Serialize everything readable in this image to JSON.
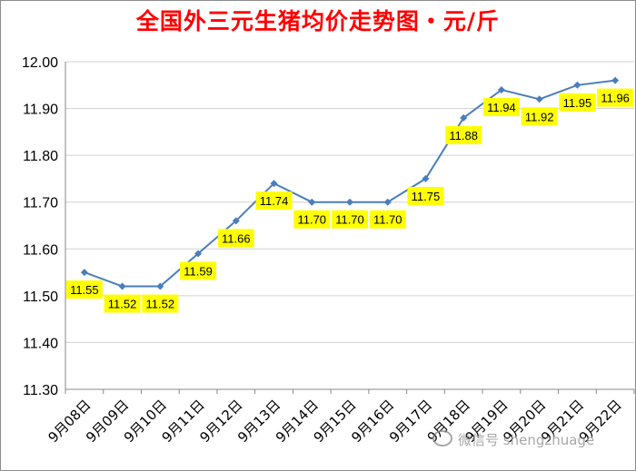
{
  "colors": {
    "title": "#ff0000",
    "line": "#4a7ebb",
    "label_bg": "#ffff00",
    "grid": "#d0d0d0",
    "axis_text": "#000000"
  },
  "watermark": "微信号 shengzhuage",
  "chart_data": {
    "type": "line",
    "title": "全国外三元生猪均价走势图・元/斤",
    "xlabel": "",
    "ylabel": "",
    "ylim": [
      11.3,
      12.0
    ],
    "y_ticks": [
      "11.30",
      "11.40",
      "11.50",
      "11.60",
      "11.70",
      "11.80",
      "11.90",
      "12.00"
    ],
    "grid": true,
    "categories": [
      "9月08日",
      "9月09日",
      "9月10日",
      "9月11日",
      "9月12日",
      "9月13日",
      "9月14日",
      "9月15日",
      "9月16日",
      "9月17日",
      "9月18日",
      "9月19日",
      "9月20日",
      "9月21日",
      "9月22日"
    ],
    "values": [
      11.55,
      11.52,
      11.52,
      11.59,
      11.66,
      11.74,
      11.7,
      11.7,
      11.7,
      11.75,
      11.88,
      11.94,
      11.92,
      11.95,
      11.96
    ],
    "data_labels": [
      "11.55",
      "11.52",
      "11.52",
      "11.59",
      "11.66",
      "11.74",
      "11.70",
      "11.70",
      "11.70",
      "11.75",
      "11.88",
      "11.94",
      "11.92",
      "11.95",
      "11.96"
    ]
  }
}
